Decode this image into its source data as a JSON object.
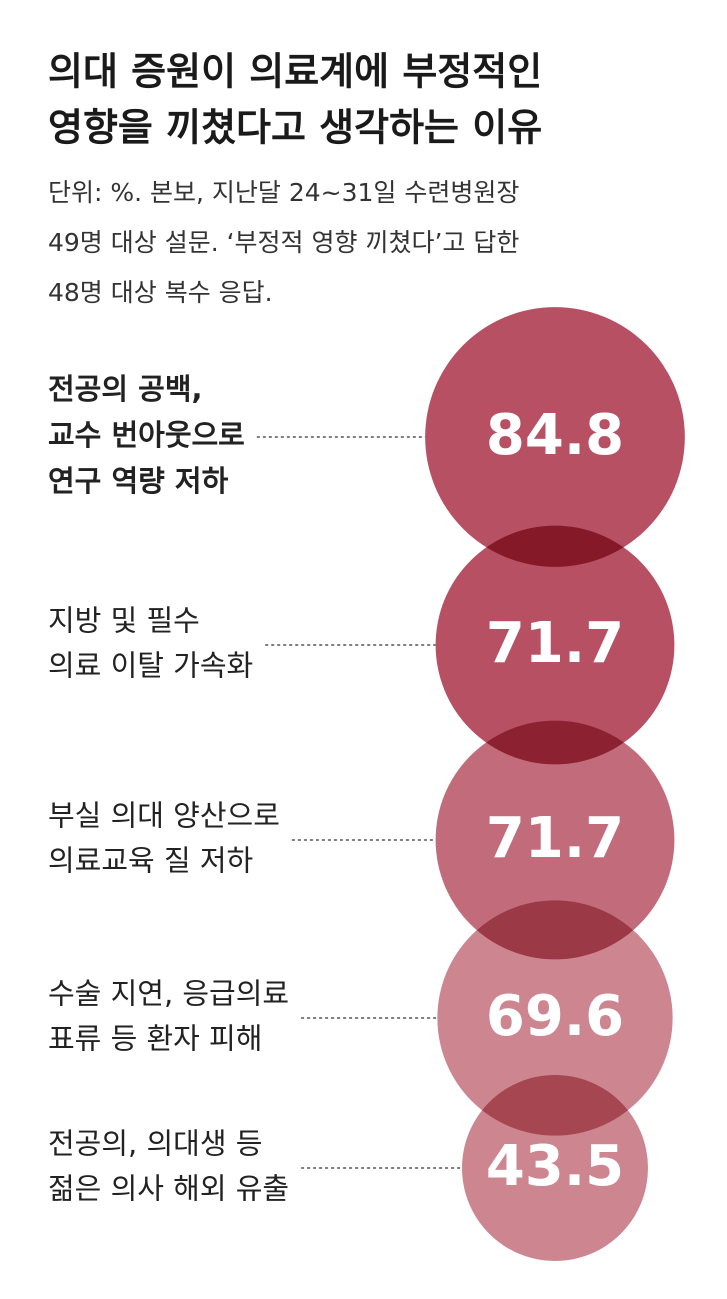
{
  "chart_data": {
    "type": "bubble",
    "title": [
      "의대 증원이 의료계에 부정적인",
      "영향을 끼쳤다고 생각하는 이유"
    ],
    "subtitle": [
      "단위: %. 본보, 지난달 24~31일 수련병원장",
      "49명 대상 설문. ‘부정적 영향 끼쳤다’고 답한",
      "48명 대상 복수 응답."
    ],
    "categories": [
      [
        "전공의 공백,",
        "교수 번아웃으로",
        "연구 역량 저하"
      ],
      [
        "지방 및 필수",
        "의료 이탈 가속화"
      ],
      [
        "부실 의대 양산으로",
        "의료교육 질 저하"
      ],
      [
        "수술 지연, 응급의료",
        "표류 등 환자 피해"
      ],
      [
        "전공의, 의대생 등",
        "젊은 의사 해외 유출"
      ]
    ],
    "values": [
      84.8,
      71.7,
      71.7,
      69.6,
      43.5
    ],
    "colors": [
      "#b85064",
      "#b85064",
      "#c26c7b",
      "#cd8590",
      "#cd8590"
    ],
    "bold_category": 0
  }
}
